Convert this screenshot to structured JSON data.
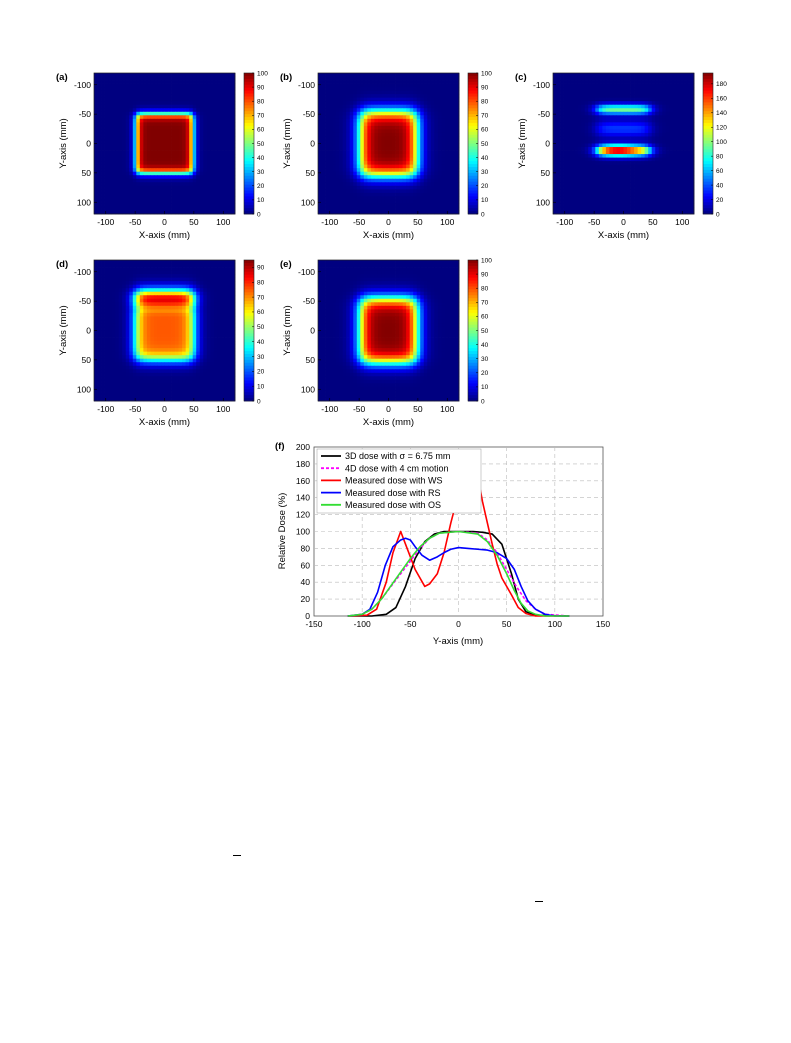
{
  "heatmaps": [
    {
      "label": "(a)",
      "kind": "uniform",
      "xlabel": "X-axis (mm)",
      "ylabel": "Y-axis (mm)",
      "x_ticks": [
        "-100",
        "-50",
        "0",
        "50",
        "100"
      ],
      "y_ticks": [
        "-100",
        "-50",
        "0",
        "50",
        "100"
      ],
      "cb_ticks": [
        "0",
        "10",
        "20",
        "30",
        "40",
        "50",
        "60",
        "70",
        "80",
        "90",
        "100"
      ],
      "cb_max": 100
    },
    {
      "label": "(b)",
      "kind": "blurred",
      "xlabel": "X-axis (mm)",
      "ylabel": "Y-axis (mm)",
      "x_ticks": [
        "-100",
        "-50",
        "0",
        "50",
        "100"
      ],
      "y_ticks": [
        "-100",
        "-50",
        "0",
        "50",
        "100"
      ],
      "cb_ticks": [
        "0",
        "10",
        "20",
        "30",
        "40",
        "50",
        "60",
        "70",
        "80",
        "90",
        "100"
      ],
      "cb_max": 100
    },
    {
      "label": "(c)",
      "kind": "ws",
      "xlabel": "X-axis (mm)",
      "ylabel": "Y-axis (mm)",
      "x_ticks": [
        "-100",
        "-50",
        "0",
        "50",
        "100"
      ],
      "y_ticks": [
        "-100",
        "-50",
        "0",
        "50",
        "100"
      ],
      "cb_ticks": [
        "0",
        "20",
        "40",
        "60",
        "80",
        "100",
        "120",
        "140",
        "160",
        "180"
      ],
      "cb_max": 195
    },
    {
      "label": "(d)",
      "kind": "rs",
      "xlabel": "X-axis (mm)",
      "ylabel": "Y-axis (mm)",
      "x_ticks": [
        "-100",
        "-50",
        "0",
        "50",
        "100"
      ],
      "y_ticks": [
        "-100",
        "-50",
        "0",
        "50",
        "100"
      ],
      "cb_ticks": [
        "0",
        "10",
        "20",
        "30",
        "40",
        "50",
        "60",
        "70",
        "80",
        "90"
      ],
      "cb_max": 95
    },
    {
      "label": "(e)",
      "kind": "os",
      "xlabel": "X-axis (mm)",
      "ylabel": "Y-axis (mm)",
      "x_ticks": [
        "-100",
        "-50",
        "0",
        "50",
        "100"
      ],
      "y_ticks": [
        "-100",
        "-50",
        "0",
        "50",
        "100"
      ],
      "cb_ticks": [
        "0",
        "10",
        "20",
        "30",
        "40",
        "50",
        "60",
        "70",
        "80",
        "90",
        "100"
      ],
      "cb_max": 100
    }
  ],
  "chart_data": {
    "type": "line",
    "label": "(f)",
    "xlabel": "Y-axis (mm)",
    "ylabel": "Relative Dose (%)",
    "xlim": [
      -150,
      150
    ],
    "ylim": [
      0,
      200
    ],
    "x_ticks": [
      "-150",
      "-100",
      "-50",
      "0",
      "50",
      "100",
      "150"
    ],
    "y_ticks": [
      "0",
      "20",
      "40",
      "60",
      "80",
      "100",
      "120",
      "140",
      "160",
      "180",
      "200"
    ],
    "grid": true,
    "legend_position": "top-left",
    "series": [
      {
        "name": "3D dose with σ = 6.75 mm",
        "color": "#000000",
        "dash": false,
        "points": [
          [
            -115,
            0
          ],
          [
            -90,
            0
          ],
          [
            -75,
            2
          ],
          [
            -65,
            10
          ],
          [
            -55,
            35
          ],
          [
            -45,
            68
          ],
          [
            -35,
            88
          ],
          [
            -25,
            97
          ],
          [
            -15,
            100
          ],
          [
            0,
            100
          ],
          [
            15,
            100
          ],
          [
            25,
            99
          ],
          [
            35,
            97
          ],
          [
            45,
            85
          ],
          [
            55,
            50
          ],
          [
            62,
            20
          ],
          [
            70,
            5
          ],
          [
            80,
            1
          ],
          [
            115,
            0
          ]
        ]
      },
      {
        "name": "4D dose with 4 cm motion",
        "color": "#ff00ff",
        "dash": true,
        "points": [
          [
            -115,
            0
          ],
          [
            -100,
            2
          ],
          [
            -90,
            8
          ],
          [
            -80,
            20
          ],
          [
            -70,
            35
          ],
          [
            -60,
            50
          ],
          [
            -50,
            65
          ],
          [
            -40,
            80
          ],
          [
            -30,
            92
          ],
          [
            -20,
            98
          ],
          [
            0,
            100
          ],
          [
            20,
            98
          ],
          [
            30,
            90
          ],
          [
            40,
            75
          ],
          [
            50,
            55
          ],
          [
            60,
            35
          ],
          [
            70,
            18
          ],
          [
            80,
            8
          ],
          [
            90,
            2
          ],
          [
            115,
            0
          ]
        ]
      },
      {
        "name": "Measured dose with WS",
        "color": "#ff0000",
        "dash": false,
        "points": [
          [
            -115,
            0
          ],
          [
            -95,
            1
          ],
          [
            -85,
            8
          ],
          [
            -75,
            40
          ],
          [
            -68,
            75
          ],
          [
            -60,
            100
          ],
          [
            -55,
            85
          ],
          [
            -45,
            55
          ],
          [
            -35,
            35
          ],
          [
            -30,
            38
          ],
          [
            -22,
            50
          ],
          [
            -15,
            75
          ],
          [
            -8,
            110
          ],
          [
            0,
            145
          ],
          [
            6,
            175
          ],
          [
            10,
            190
          ],
          [
            15,
            183
          ],
          [
            20,
            165
          ],
          [
            25,
            135
          ],
          [
            30,
            110
          ],
          [
            35,
            85
          ],
          [
            40,
            62
          ],
          [
            45,
            45
          ],
          [
            55,
            25
          ],
          [
            62,
            10
          ],
          [
            70,
            3
          ],
          [
            80,
            0
          ],
          [
            115,
            0
          ]
        ]
      },
      {
        "name": "Measured dose with RS",
        "color": "#0000ff",
        "dash": false,
        "points": [
          [
            -115,
            0
          ],
          [
            -100,
            2
          ],
          [
            -92,
            8
          ],
          [
            -84,
            28
          ],
          [
            -76,
            60
          ],
          [
            -68,
            82
          ],
          [
            -60,
            90
          ],
          [
            -55,
            92
          ],
          [
            -50,
            90
          ],
          [
            -45,
            82
          ],
          [
            -38,
            72
          ],
          [
            -30,
            66
          ],
          [
            -22,
            70
          ],
          [
            -15,
            75
          ],
          [
            -8,
            79
          ],
          [
            0,
            81
          ],
          [
            10,
            80
          ],
          [
            20,
            79
          ],
          [
            30,
            78
          ],
          [
            40,
            75
          ],
          [
            50,
            68
          ],
          [
            58,
            55
          ],
          [
            65,
            35
          ],
          [
            72,
            18
          ],
          [
            80,
            8
          ],
          [
            90,
            2
          ],
          [
            100,
            0
          ],
          [
            115,
            0
          ]
        ]
      },
      {
        "name": "Measured dose with OS",
        "color": "#33dd33",
        "dash": false,
        "points": [
          [
            -115,
            0
          ],
          [
            -100,
            2
          ],
          [
            -90,
            8
          ],
          [
            -80,
            20
          ],
          [
            -70,
            36
          ],
          [
            -60,
            52
          ],
          [
            -50,
            68
          ],
          [
            -40,
            82
          ],
          [
            -30,
            92
          ],
          [
            -20,
            98
          ],
          [
            0,
            100
          ],
          [
            20,
            97
          ],
          [
            30,
            88
          ],
          [
            40,
            72
          ],
          [
            50,
            50
          ],
          [
            58,
            30
          ],
          [
            65,
            15
          ],
          [
            72,
            6
          ],
          [
            80,
            2
          ],
          [
            90,
            0
          ],
          [
            115,
            0
          ]
        ]
      }
    ]
  }
}
